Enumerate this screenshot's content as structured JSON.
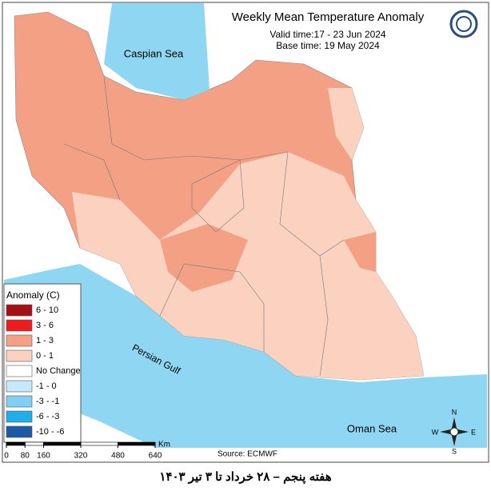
{
  "header": {
    "title": "Weekly Mean Temperature Anomaly",
    "valid_time": "Valid time:17 - 23 Jun 2024",
    "base_time": "Base time: 19 May 2024"
  },
  "labels": {
    "caspian": "Caspian Sea",
    "persian_gulf": "Persian Gulf",
    "oman_sea": "Oman Sea"
  },
  "legend": {
    "title": "Anomaly (C)",
    "items": [
      {
        "label": "6 - 10",
        "color": "#a50f15"
      },
      {
        "label": "3 - 6",
        "color": "#ef1c1c"
      },
      {
        "label": "1 - 3",
        "color": "#f4a085"
      },
      {
        "label": "0 - 1",
        "color": "#fbd2c0"
      },
      {
        "label": "No Change",
        "color": "#ffffff"
      },
      {
        "label": "-1 - 0",
        "color": "#c6e8fa"
      },
      {
        "label": "-3 - -1",
        "color": "#7fd0f2"
      },
      {
        "label": "-6 - -3",
        "color": "#1eaee8"
      },
      {
        "label": "-10 - -6",
        "color": "#1c5aa8"
      }
    ]
  },
  "scale": {
    "ticks": [
      0,
      80,
      160,
      320,
      480,
      640
    ],
    "unit": "Km"
  },
  "compass": {
    "n": "N",
    "s": "S",
    "e": "E",
    "w": "W"
  },
  "source": "Source: ECMWF",
  "footer": "هفته پنجم – ۲۸ خرداد تا ۳ تیر ۱۴۰۳"
}
